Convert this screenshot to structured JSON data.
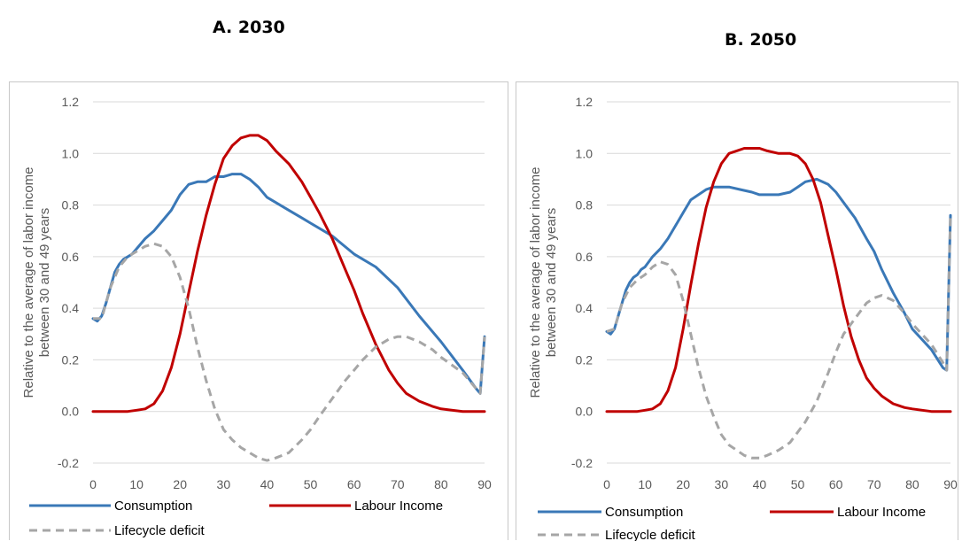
{
  "panels": [
    {
      "title": "A. 2030"
    },
    {
      "title": "B. 2050"
    }
  ],
  "chart_data": [
    {
      "type": "line",
      "title": "A. 2030",
      "xlabel": "",
      "ylabel_lines": [
        "Relative to the average of labor income",
        "between 30 and 49 years"
      ],
      "xlim": [
        0,
        90
      ],
      "ylim": [
        -0.2,
        1.2
      ],
      "x_ticks": [
        0,
        10,
        20,
        30,
        40,
        50,
        60,
        70,
        80,
        90
      ],
      "y_ticks": [
        "-0.2",
        "0.0",
        "0.2",
        "0.4",
        "0.6",
        "0.8",
        "1.0",
        "1.2"
      ],
      "grid": true,
      "legend_position": "bottom",
      "series": [
        {
          "name": "Consumption",
          "color": "#3a78b7",
          "dash": "solid",
          "x": [
            0,
            1,
            2,
            3,
            4,
            5,
            6,
            7,
            8,
            9,
            10,
            12,
            14,
            16,
            18,
            20,
            22,
            24,
            26,
            28,
            30,
            32,
            34,
            35,
            36,
            38,
            40,
            42,
            45,
            48,
            50,
            55,
            60,
            65,
            70,
            75,
            80,
            85,
            88,
            89,
            90
          ],
          "y": [
            0.36,
            0.35,
            0.37,
            0.42,
            0.48,
            0.54,
            0.57,
            0.59,
            0.6,
            0.61,
            0.63,
            0.67,
            0.7,
            0.74,
            0.78,
            0.84,
            0.88,
            0.89,
            0.89,
            0.91,
            0.91,
            0.92,
            0.92,
            0.91,
            0.9,
            0.87,
            0.83,
            0.81,
            0.78,
            0.75,
            0.73,
            0.68,
            0.61,
            0.56,
            0.48,
            0.37,
            0.27,
            0.16,
            0.09,
            0.07,
            0.29
          ]
        },
        {
          "name": "Labour Income",
          "color": "#c00000",
          "dash": "solid",
          "x": [
            0,
            5,
            8,
            10,
            12,
            14,
            16,
            18,
            20,
            22,
            24,
            26,
            28,
            30,
            32,
            34,
            36,
            38,
            40,
            42,
            45,
            48,
            50,
            52,
            55,
            58,
            60,
            62,
            65,
            68,
            70,
            72,
            75,
            78,
            80,
            85,
            88,
            90
          ],
          "y": [
            0.0,
            0.0,
            0.0,
            0.005,
            0.01,
            0.03,
            0.08,
            0.17,
            0.3,
            0.46,
            0.62,
            0.76,
            0.88,
            0.98,
            1.03,
            1.06,
            1.07,
            1.07,
            1.05,
            1.01,
            0.96,
            0.89,
            0.83,
            0.77,
            0.67,
            0.55,
            0.47,
            0.38,
            0.26,
            0.16,
            0.11,
            0.07,
            0.04,
            0.02,
            0.01,
            0.0,
            0.0,
            0.0
          ]
        },
        {
          "name": "Lifecycle deficit",
          "color": "#a6a6a6",
          "dash": "dashed",
          "x": [
            0,
            2,
            4,
            6,
            8,
            10,
            12,
            14,
            16,
            18,
            20,
            22,
            24,
            26,
            28,
            30,
            32,
            34,
            36,
            38,
            40,
            42,
            45,
            48,
            50,
            52,
            55,
            58,
            60,
            62,
            65,
            68,
            70,
            72,
            75,
            78,
            80,
            85,
            88,
            89,
            90
          ],
          "y": [
            0.36,
            0.36,
            0.48,
            0.56,
            0.6,
            0.62,
            0.64,
            0.65,
            0.64,
            0.6,
            0.52,
            0.4,
            0.25,
            0.12,
            0.01,
            -0.07,
            -0.11,
            -0.14,
            -0.16,
            -0.18,
            -0.19,
            -0.18,
            -0.16,
            -0.11,
            -0.07,
            -0.02,
            0.05,
            0.12,
            0.16,
            0.2,
            0.25,
            0.28,
            0.29,
            0.29,
            0.27,
            0.24,
            0.21,
            0.15,
            0.09,
            0.07,
            0.29
          ]
        }
      ]
    },
    {
      "type": "line",
      "title": "B. 2050",
      "xlabel": "",
      "ylabel_lines": [
        "Relative to the average of labor income",
        "between 30 and 49 years"
      ],
      "xlim": [
        0,
        90
      ],
      "ylim": [
        -0.2,
        1.2
      ],
      "x_ticks": [
        0,
        10,
        20,
        30,
        40,
        50,
        60,
        70,
        80,
        90
      ],
      "y_ticks": [
        "-0.2",
        "0.0",
        "0.2",
        "0.4",
        "0.6",
        "0.8",
        "1.0",
        "1.2"
      ],
      "grid": true,
      "legend_position": "bottom",
      "series": [
        {
          "name": "Consumption",
          "color": "#3a78b7",
          "dash": "solid",
          "x": [
            0,
            1,
            2,
            3,
            4,
            5,
            6,
            7,
            8,
            9,
            10,
            12,
            14,
            16,
            18,
            20,
            22,
            24,
            26,
            28,
            30,
            32,
            35,
            38,
            40,
            42,
            45,
            48,
            50,
            52,
            55,
            58,
            60,
            62,
            65,
            68,
            70,
            72,
            75,
            78,
            80,
            85,
            88,
            89,
            90
          ],
          "y": [
            0.31,
            0.3,
            0.32,
            0.37,
            0.42,
            0.47,
            0.5,
            0.52,
            0.53,
            0.55,
            0.56,
            0.6,
            0.63,
            0.67,
            0.72,
            0.77,
            0.82,
            0.84,
            0.86,
            0.87,
            0.87,
            0.87,
            0.86,
            0.85,
            0.84,
            0.84,
            0.84,
            0.85,
            0.87,
            0.89,
            0.9,
            0.88,
            0.85,
            0.81,
            0.75,
            0.67,
            0.62,
            0.55,
            0.46,
            0.38,
            0.32,
            0.24,
            0.17,
            0.16,
            0.76
          ]
        },
        {
          "name": "Labour Income",
          "color": "#c00000",
          "dash": "solid",
          "x": [
            0,
            5,
            8,
            10,
            12,
            14,
            16,
            18,
            20,
            22,
            24,
            26,
            28,
            30,
            32,
            34,
            36,
            38,
            40,
            42,
            45,
            48,
            50,
            52,
            54,
            56,
            58,
            60,
            62,
            64,
            66,
            68,
            70,
            72,
            75,
            78,
            80,
            85,
            88,
            90
          ],
          "y": [
            0.0,
            0.0,
            0.0,
            0.005,
            0.01,
            0.03,
            0.08,
            0.17,
            0.32,
            0.49,
            0.65,
            0.79,
            0.89,
            0.96,
            1.0,
            1.01,
            1.02,
            1.02,
            1.02,
            1.01,
            1.0,
            1.0,
            0.99,
            0.96,
            0.9,
            0.81,
            0.68,
            0.55,
            0.41,
            0.29,
            0.2,
            0.13,
            0.09,
            0.06,
            0.03,
            0.015,
            0.01,
            0.0,
            0.0,
            0.0
          ]
        },
        {
          "name": "Lifecycle deficit",
          "color": "#a6a6a6",
          "dash": "dashed",
          "x": [
            0,
            2,
            4,
            6,
            8,
            10,
            12,
            14,
            16,
            18,
            20,
            22,
            24,
            26,
            28,
            30,
            32,
            34,
            36,
            38,
            40,
            42,
            45,
            48,
            50,
            52,
            55,
            58,
            60,
            62,
            65,
            68,
            70,
            72,
            75,
            78,
            80,
            85,
            88,
            89,
            90
          ],
          "y": [
            0.31,
            0.32,
            0.42,
            0.48,
            0.51,
            0.53,
            0.56,
            0.58,
            0.57,
            0.53,
            0.43,
            0.3,
            0.17,
            0.06,
            -0.02,
            -0.09,
            -0.13,
            -0.15,
            -0.17,
            -0.18,
            -0.18,
            -0.17,
            -0.15,
            -0.12,
            -0.08,
            -0.04,
            0.04,
            0.15,
            0.23,
            0.3,
            0.36,
            0.42,
            0.44,
            0.45,
            0.43,
            0.38,
            0.34,
            0.26,
            0.19,
            0.16,
            0.76
          ]
        }
      ]
    }
  ]
}
